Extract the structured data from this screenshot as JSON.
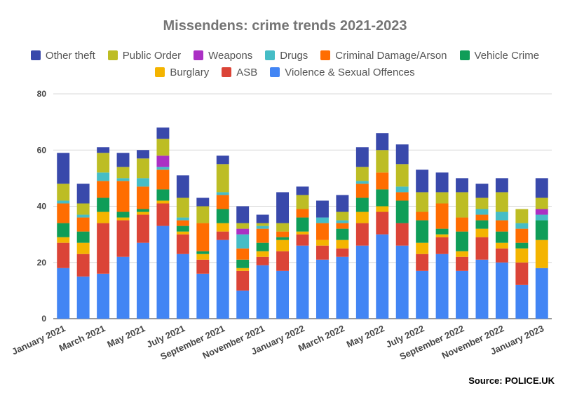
{
  "chart_data": {
    "type": "bar",
    "stacked": true,
    "title": "Missendens: crime trends 2021-2023",
    "xlabel": "",
    "ylabel": "",
    "ylim": [
      0,
      80
    ],
    "yticks": [
      0,
      20,
      40,
      60,
      80
    ],
    "grid": true,
    "legend_position": "top",
    "source": "Source: POLICE.UK",
    "categories": [
      "January 2021",
      "February 2021",
      "March 2021",
      "April 2021",
      "May 2021",
      "June 2021",
      "July 2021",
      "August 2021",
      "September 2021",
      "October 2021",
      "November 2021",
      "December 2021",
      "January 2022",
      "February 2022",
      "March 2022",
      "April 2022",
      "May 2022",
      "June 2022",
      "July 2022",
      "August 2022",
      "September 2022",
      "October 2022",
      "November 2022",
      "December 2022",
      "January 2023"
    ],
    "tick_labels": [
      "January 2021",
      "",
      "March 2021",
      "",
      "May 2021",
      "",
      "July 2021",
      "",
      "September 2021",
      "",
      "November 2021",
      "",
      "January 2022",
      "",
      "March 2022",
      "",
      "May 2022",
      "",
      "July 2022",
      "",
      "September 2022",
      "",
      "November 2022",
      "",
      "January 2023"
    ],
    "series": [
      {
        "name": "Violence & Sexual Offences",
        "color": "#4285f4",
        "values": [
          18,
          15,
          16,
          22,
          27,
          33,
          23,
          16,
          28,
          10,
          19,
          17,
          26,
          21,
          22,
          26,
          30,
          26,
          17,
          23,
          17,
          21,
          20,
          12,
          18
        ]
      },
      {
        "name": "ASB",
        "color": "#db4437",
        "values": [
          9,
          8,
          18,
          13,
          10,
          8,
          7,
          5,
          3,
          7,
          3,
          7,
          4,
          5,
          3,
          8,
          8,
          8,
          6,
          6,
          5,
          8,
          5,
          8,
          0
        ]
      },
      {
        "name": "Burglary",
        "color": "#f4b400",
        "values": [
          2,
          4,
          4,
          1,
          1,
          1,
          1,
          2,
          3,
          1,
          2,
          4,
          1,
          2,
          3,
          4,
          2,
          0,
          4,
          1,
          2,
          3,
          2,
          5,
          10
        ]
      },
      {
        "name": "Vehicle Crime",
        "color": "#0f9d58",
        "values": [
          5,
          4,
          5,
          2,
          1,
          4,
          2,
          1,
          5,
          3,
          3,
          1,
          5,
          0,
          4,
          5,
          6,
          8,
          8,
          2,
          7,
          3,
          4,
          2,
          7
        ]
      },
      {
        "name": "Criminal Damage/Arson",
        "color": "#ff6d01",
        "values": [
          7,
          5,
          6,
          11,
          8,
          7,
          2,
          10,
          5,
          4,
          5,
          2,
          3,
          6,
          2,
          5,
          6,
          3,
          3,
          9,
          5,
          2,
          4,
          5,
          0
        ]
      },
      {
        "name": "Drugs",
        "color": "#46bdc6",
        "values": [
          1,
          1,
          3,
          1,
          3,
          1,
          1,
          0,
          1,
          5,
          1,
          0,
          0,
          2,
          1,
          1,
          0,
          2,
          0,
          0,
          0,
          2,
          3,
          2,
          2
        ]
      },
      {
        "name": "Weapons",
        "color": "#ab30c4",
        "values": [
          0,
          0,
          0,
          0,
          0,
          4,
          0,
          0,
          0,
          2,
          0,
          0,
          0,
          0,
          0,
          0,
          0,
          0,
          0,
          0,
          0,
          0,
          0,
          0,
          2
        ]
      },
      {
        "name": "Public Order",
        "color": "#bdbd24",
        "values": [
          6,
          4,
          7,
          4,
          7,
          6,
          7,
          6,
          10,
          2,
          1,
          3,
          5,
          0,
          3,
          5,
          8,
          8,
          7,
          4,
          9,
          4,
          7,
          5,
          4
        ]
      },
      {
        "name": "Other theft",
        "color": "#3949ab",
        "values": [
          11,
          7,
          2,
          5,
          3,
          4,
          8,
          3,
          3,
          6,
          3,
          11,
          3,
          6,
          6,
          7,
          6,
          7,
          8,
          7,
          5,
          5,
          5,
          0,
          7
        ]
      }
    ],
    "legend_order": [
      "Other theft",
      "Public Order",
      "Weapons",
      "Drugs",
      "Criminal Damage/Arson",
      "Vehicle Crime",
      "Burglary",
      "ASB",
      "Violence & Sexual Offences"
    ]
  }
}
